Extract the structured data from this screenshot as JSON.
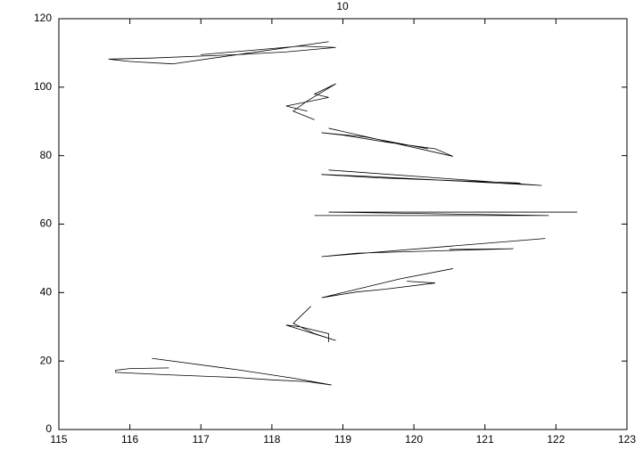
{
  "chart_data": {
    "type": "line",
    "title": "10",
    "xlim": [
      115,
      123
    ],
    "xticks": [
      115,
      116,
      117,
      118,
      119,
      120,
      121,
      122,
      123
    ],
    "ylim": [
      0,
      120
    ],
    "yticks": [
      0,
      20,
      40,
      60,
      80,
      100,
      120
    ],
    "series": [
      {
        "color": "#000000",
        "x": [
          116.31,
          117.5,
          118.3,
          118.84,
          118.5,
          118.0,
          117.5,
          116.5,
          115.8,
          115.8,
          116.0,
          116.55
        ],
        "values": [
          20.8,
          17.5,
          15,
          13.0,
          14,
          14.5,
          15.2,
          16,
          16.7,
          17.3,
          17.8,
          18.0
        ]
      },
      {
        "color": "#000000",
        "x": [
          118.55,
          118.3,
          118.6,
          118.9,
          118.2,
          118.4,
          118.8,
          118.8
        ],
        "values": [
          36,
          31,
          28,
          26,
          30.5,
          30,
          28,
          25.5
        ]
      },
      {
        "color": "#000000",
        "x": [
          120.55,
          119.8,
          119.0,
          118.7,
          119.2,
          119.6,
          120.3,
          119.9
        ],
        "values": [
          47,
          44,
          40,
          38.5,
          40.2,
          41,
          42.8,
          43.3
        ]
      },
      {
        "color": "#000000",
        "x": [
          121.85,
          118.7,
          119.2,
          120.0,
          121.4,
          120.5
        ],
        "values": [
          55.8,
          50.5,
          51.5,
          52,
          52.8,
          52.6
        ]
      },
      {
        "color": "#000000",
        "x": [
          118.6,
          121.9,
          118.8,
          122.3
        ],
        "values": [
          62.5,
          62.5,
          63.5,
          63.5
        ]
      },
      {
        "color": "#000000",
        "x": [
          118.8,
          121.8,
          119.3,
          118.7,
          119.5,
          121.5
        ],
        "values": [
          75.8,
          71.3,
          74,
          74.5,
          73.5,
          72
        ]
      },
      {
        "color": "#000000",
        "x": [
          118.8,
          120.55,
          120.3,
          119.6,
          119.0,
          118.7,
          119.3,
          120.2
        ],
        "values": [
          88,
          79.8,
          82,
          84,
          86,
          86.7,
          85.5,
          82
        ]
      },
      {
        "color": "#000000",
        "x": [
          118.6,
          118.3,
          118.5,
          118.9,
          118.6,
          118.8,
          118.2,
          118.5
        ],
        "values": [
          90.5,
          93,
          96,
          101,
          98,
          97,
          94.5,
          93
        ]
      },
      {
        "color": "#000000",
        "x": [
          118.8,
          116.6,
          116.0,
          115.7,
          116.3,
          117.5,
          118.2,
          118.9,
          118.4,
          117.0
        ],
        "values": [
          113.3,
          106.8,
          107.5,
          108.2,
          108.5,
          109.5,
          110.3,
          111.6,
          112,
          109.5
        ]
      }
    ]
  }
}
